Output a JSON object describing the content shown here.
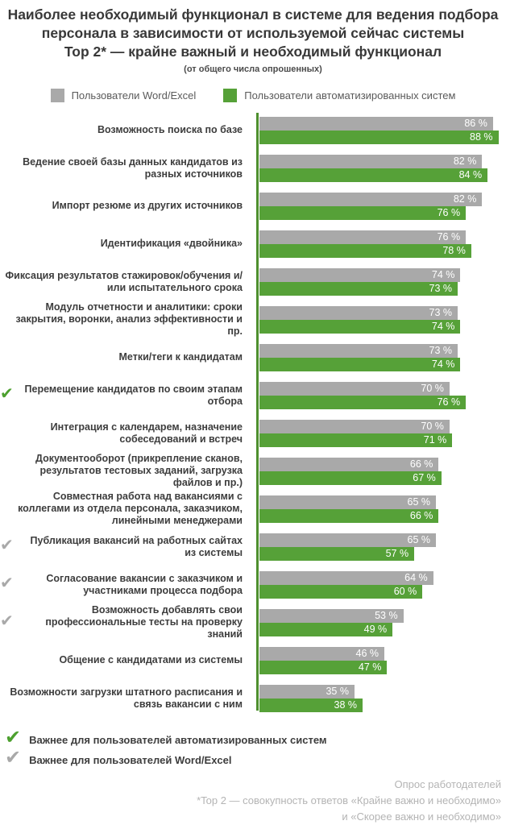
{
  "title": {
    "line1": "Наиболее необходимый функционал в системе для ведения подбора",
    "line2": "персонала в зависимости от используемой сейчас системы",
    "line3": "Top 2* — крайне важный и необходимый функционал",
    "subtitle": "(от общего числа опрошенных)"
  },
  "colors": {
    "gray": "#a9a9a9",
    "green": "#56a138",
    "axis": "#4e8f2e",
    "check_green": "#4ca02e",
    "check_gray": "#a9a9a9"
  },
  "legend": [
    {
      "label": "Пользователи Word/Excel",
      "color": "#a9a9a9"
    },
    {
      "label": "Пользователи автоматизированных систем",
      "color": "#56a138"
    }
  ],
  "chart_data": {
    "type": "bar",
    "orientation": "horizontal",
    "unit": "%",
    "xlim": [
      0,
      93
    ],
    "value_suffix": " %",
    "legend_position": "top",
    "categories": [
      "Возможность поиска по базе",
      "Ведение своей базы данных кандидатов из разных источников",
      "Импорт резюме из других источников",
      "Идентификация «двойника»",
      "Фиксация результатов стажировок/обучения и/или испытательного срока",
      "Модуль отчетности и аналитики: сроки закрытия, воронки, анализ эффективности и пр.",
      "Метки/теги к кандидатам",
      "Перемещение кандидатов по своим этапам отбора",
      "Интеграция с календарем, назначение собеседований и встреч",
      "Документооборот (прикрепление сканов, результатов тестовых заданий, загрузка файлов и пр.)",
      "Совместная работа над вакансиями с коллегами из отдела персонала, заказчиком, линейными менеджерами",
      "Публикация вакансий на работных сайтах из системы",
      "Согласование вакансии с заказчиком и участниками процесса подбора",
      "Возможность добавлять свои профессиональные тесты на проверку знаний",
      "Общение с кандидатами из системы",
      "Возможности загрузки штатного расписания и связь вакансии с ним"
    ],
    "series": [
      {
        "name": "Пользователи Word/Excel",
        "color": "#a9a9a9",
        "values": [
          86,
          82,
          82,
          76,
          74,
          73,
          73,
          70,
          70,
          66,
          65,
          65,
          64,
          53,
          46,
          35
        ]
      },
      {
        "name": "Пользователи автоматизированных систем",
        "color": "#56a138",
        "values": [
          88,
          84,
          76,
          78,
          73,
          74,
          74,
          76,
          71,
          67,
          66,
          57,
          60,
          49,
          47,
          38
        ]
      }
    ],
    "checkmarks": [
      null,
      null,
      null,
      null,
      null,
      null,
      null,
      "green",
      null,
      null,
      null,
      "gray",
      "gray",
      "gray",
      null,
      null
    ]
  },
  "footer": {
    "legend": [
      {
        "label": "Важнее для пользователей автоматизированных систем",
        "color": "green"
      },
      {
        "label": "Важнее для пользователей Word/Excel",
        "color": "gray"
      }
    ],
    "note_lines": [
      "Опрос работодателей",
      "*Top 2 — совокупность ответов «Крайне важно и необходимо»",
      "и «Скорее важно и необходимо»"
    ]
  }
}
